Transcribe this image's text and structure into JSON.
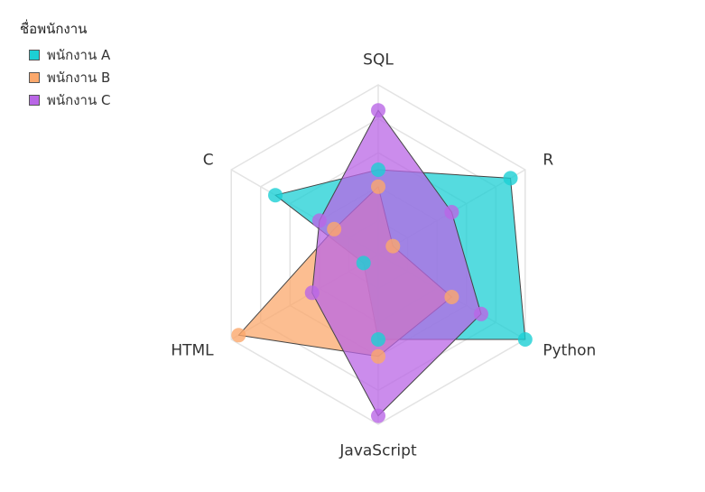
{
  "legend": {
    "title": "ชื่อพนักงาน",
    "items": [
      {
        "label": "พนักงาน A",
        "color": "#1ccfd4"
      },
      {
        "label": "พนักงาน B",
        "color": "#fba86c"
      },
      {
        "label": "พนักงาน C",
        "color": "#b966e6"
      }
    ]
  },
  "chart_data": {
    "type": "radar",
    "axes": [
      "SQL",
      "R",
      "Python",
      "JavaScript",
      "HTML",
      "C"
    ],
    "range": [
      0,
      100
    ],
    "grid": true,
    "legend_position": "top-left",
    "series": [
      {
        "name": "พนักงาน A",
        "color": "#1ccfd4",
        "values": [
          50,
          90,
          100,
          50,
          10,
          70
        ]
      },
      {
        "name": "พนักงาน B",
        "color": "#fba86c",
        "values": [
          40,
          10,
          50,
          60,
          95,
          30
        ]
      },
      {
        "name": "พนักงาน C",
        "color": "#b966e6",
        "values": [
          85,
          50,
          70,
          95,
          45,
          40
        ]
      }
    ]
  }
}
